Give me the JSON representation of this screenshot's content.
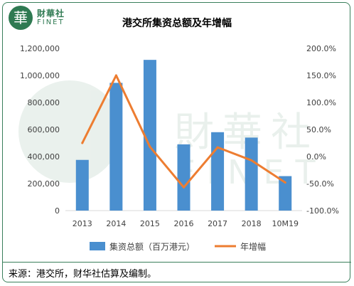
{
  "branding": {
    "logo_char": "華",
    "logo_cn": "財華社",
    "logo_en": "FINET",
    "color": "#2f7a52"
  },
  "chart_data": {
    "type": "bar+line",
    "title": "港交所集资总额及年增幅",
    "categories": [
      "2013",
      "2014",
      "2015",
      "2016",
      "2017",
      "2018",
      "10M19"
    ],
    "series": [
      {
        "name": "集资总额（百万港元）",
        "type": "bar",
        "axis": "left",
        "color": "#4a8fcf",
        "values": [
          375000,
          945000,
          1115000,
          490000,
          580000,
          540000,
          255000
        ]
      },
      {
        "name": "年增幅",
        "type": "line",
        "axis": "right",
        "color": "#ed7d31",
        "values": [
          25,
          150,
          18,
          -57,
          17,
          -7,
          -48
        ]
      }
    ],
    "y_left": {
      "ylim": [
        0,
        1200000
      ],
      "ticks": [
        "0",
        "200,000",
        "400,000",
        "600,000",
        "800,000",
        "1,000,000",
        "1,200,000"
      ]
    },
    "y_right": {
      "ylim": [
        -100,
        200
      ],
      "ticks": [
        "-100.0%",
        "-50.0%",
        "0.0%",
        "50.0%",
        "100.0%",
        "150.0%",
        "200.0%"
      ]
    },
    "grid": false,
    "legend_position": "bottom"
  },
  "footnote": "来源：港交所，财华社估算及编制。"
}
